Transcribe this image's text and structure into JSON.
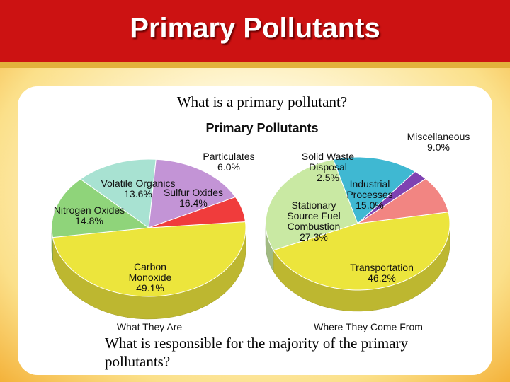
{
  "slide": {
    "title": "Primary Pollutants",
    "question": "What is a primary pollutant?",
    "answer": "What is responsible for the majority of the primary pollutants?"
  },
  "figure_title": "Primary Pollutants",
  "chart_data": [
    {
      "type": "pie",
      "title": "What They Are",
      "categories": [
        "Carbon Monoxide",
        "Nitrogen Oxides",
        "Volatile Organics",
        "Sulfur Oxides",
        "Particulates"
      ],
      "values": [
        49.1,
        14.8,
        13.6,
        16.4,
        6.0
      ],
      "value_labels": [
        "49.1%",
        "14.8%",
        "13.6%",
        "16.4%",
        "6.0%"
      ],
      "colors": [
        "#ece53c",
        "#8fd47a",
        "#a8e2d2",
        "#c394d6",
        "#f03c3c"
      ]
    },
    {
      "type": "pie",
      "title": "Where They Come From",
      "categories": [
        "Transportation",
        "Stationary Source Fuel Combustion",
        "Industrial Processes",
        "Solid Waste Disposal",
        "Miscellaneous"
      ],
      "values": [
        46.2,
        27.3,
        15.0,
        2.5,
        9.0
      ],
      "value_labels": [
        "46.2%",
        "27.3%",
        "15.0%",
        "2.5%",
        "9.0%"
      ],
      "colors": [
        "#ece53c",
        "#c9e9a3",
        "#3fb8d2",
        "#7f42b2",
        "#f28582"
      ]
    }
  ]
}
